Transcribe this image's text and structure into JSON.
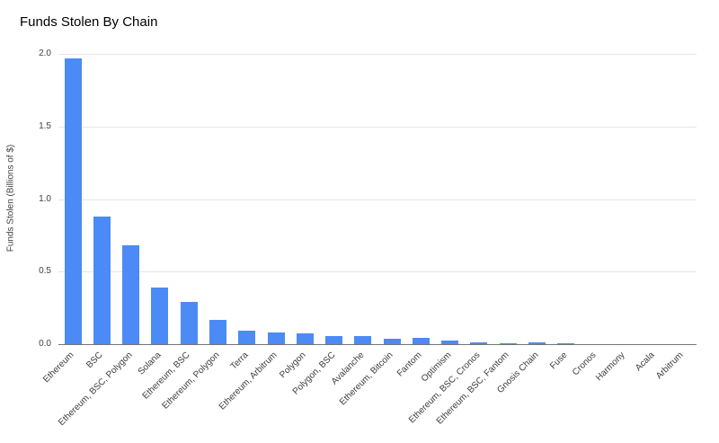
{
  "chart_data": {
    "type": "bar",
    "title": "Funds Stolen By Chain",
    "xlabel": "",
    "ylabel": "Funds Stolen (Billions of $)",
    "ylim": [
      0,
      2.0
    ],
    "yticks": [
      0,
      0.5,
      1.0,
      1.5,
      2.0
    ],
    "ytick_format": "one-decimal",
    "grid": true,
    "legend": "none",
    "colors": {
      "bar": "#4c8bf5",
      "gridline": "#e6e6e6",
      "axis_line": "#757575",
      "title_text": "#000000",
      "tick_text": "#424242"
    },
    "categories": [
      "Ethereum",
      "BSC",
      "Ethereum, BSC, Polygon",
      "Solana",
      "Ethereum, BSC",
      "Ethereum, Polygon",
      "Terra",
      "Ethereum, Arbitrum",
      "Polygon",
      "Polygon, BSC",
      "Avalanche",
      "Ethereum, Bitcoin",
      "Fantom",
      "Optimism",
      "Ethereum, BSC, Cronos",
      "Ethereum, BSC, Fantom",
      "Gnosis Chain",
      "Fuse",
      "Cronos",
      "Harmony",
      "Acala",
      "Arbitrum"
    ],
    "values": [
      1.97,
      0.88,
      0.68,
      0.39,
      0.29,
      0.17,
      0.09,
      0.08,
      0.075,
      0.055,
      0.055,
      0.035,
      0.045,
      0.025,
      0.01,
      0.008,
      0.012,
      0.005,
      0.003,
      0.002,
      0.001,
      0.001
    ]
  }
}
